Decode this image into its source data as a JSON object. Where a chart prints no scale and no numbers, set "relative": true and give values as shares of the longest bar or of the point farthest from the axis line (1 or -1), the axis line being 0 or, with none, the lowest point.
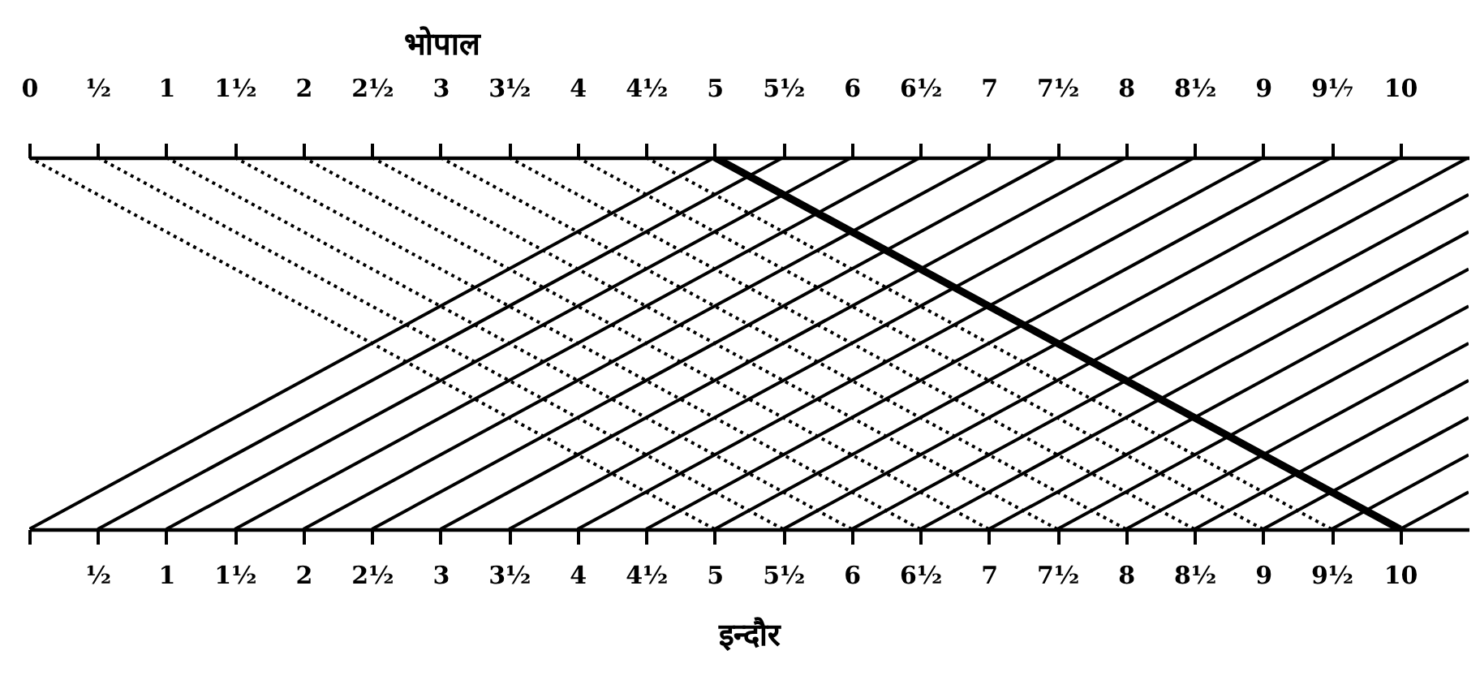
{
  "chart_data": {
    "type": "line",
    "relative": true,
    "x2label": "भोपाल",
    "xlabel": "इन्दौर",
    "grid": false,
    "xlim": [
      0,
      10.5
    ],
    "xticks": [
      {
        "value": 0,
        "label": null
      },
      {
        "value": 0.5,
        "label": "½"
      },
      1,
      {
        "value": 1.5,
        "label": "1½"
      },
      2,
      {
        "value": 2.5,
        "label": "2½"
      },
      3,
      {
        "value": 3.5,
        "label": "3½"
      },
      4,
      {
        "value": 4.5,
        "label": "4½"
      },
      5,
      {
        "value": 5.5,
        "label": "5½"
      },
      6,
      {
        "value": 6.5,
        "label": "6½"
      },
      7,
      {
        "value": 7.5,
        "label": "7½"
      },
      8,
      {
        "value": 8.5,
        "label": "8½"
      },
      9,
      {
        "value": 9.5,
        "label": "9½"
      },
      10
    ],
    "x2lim": [
      0,
      10.5
    ],
    "x2ticks": [
      0,
      {
        "value": 0.5,
        "label": "½"
      },
      1,
      {
        "value": 1.5,
        "label": "1½"
      },
      2,
      {
        "value": 2.5,
        "label": "2½"
      },
      3,
      {
        "value": 3.5,
        "label": "3½"
      },
      4,
      {
        "value": 4.5,
        "label": "4½"
      },
      5,
      {
        "value": 5.5,
        "label": "5½"
      },
      6,
      {
        "value": 6.5,
        "label": "6½"
      },
      7,
      {
        "value": 7.5,
        "label": "7½"
      },
      8,
      {
        "value": 8.5,
        "label": "8½"
      },
      9,
      {
        "value": 9.5,
        "label": "9⅐"
      },
      10
    ],
    "series": [
      {
        "color": "#000000",
        "line_style": "dotted",
        "x": [
          0,
          5
        ],
        "values": [
          1,
          0
        ]
      },
      {
        "color": "#000000",
        "line_style": "dotted",
        "x": [
          0.5,
          5.5
        ],
        "values": [
          1,
          0
        ]
      },
      {
        "color": "#000000",
        "line_style": "dotted",
        "x": [
          1,
          6
        ],
        "values": [
          1,
          0
        ]
      },
      {
        "color": "#000000",
        "line_style": "dotted",
        "x": [
          1.5,
          6.5
        ],
        "values": [
          1,
          0
        ]
      },
      {
        "color": "#000000",
        "line_style": "dotted",
        "x": [
          2,
          7
        ],
        "values": [
          1,
          0
        ]
      },
      {
        "color": "#000000",
        "line_style": "dotted",
        "x": [
          2.5,
          7.5
        ],
        "values": [
          1,
          0
        ]
      },
      {
        "color": "#000000",
        "line_style": "dotted",
        "x": [
          3,
          8
        ],
        "values": [
          1,
          0
        ]
      },
      {
        "color": "#000000",
        "line_style": "dotted",
        "x": [
          3.5,
          8.5
        ],
        "values": [
          1,
          0
        ]
      },
      {
        "color": "#000000",
        "line_style": "dotted",
        "x": [
          4,
          9
        ],
        "values": [
          1,
          0
        ]
      },
      {
        "color": "#000000",
        "line_style": "dotted",
        "x": [
          4.5,
          9.5
        ],
        "values": [
          1,
          0
        ]
      },
      {
        "color": "#000000",
        "line_style": "solid",
        "x": [
          0,
          5
        ],
        "values": [
          0,
          1
        ]
      },
      {
        "color": "#000000",
        "line_style": "solid",
        "x": [
          0.5,
          5.5
        ],
        "values": [
          0,
          1
        ]
      },
      {
        "color": "#000000",
        "line_style": "solid",
        "x": [
          1,
          6
        ],
        "values": [
          0,
          1
        ]
      },
      {
        "color": "#000000",
        "line_style": "solid",
        "x": [
          1.5,
          6.5
        ],
        "values": [
          0,
          1
        ]
      },
      {
        "color": "#000000",
        "line_style": "solid",
        "x": [
          2,
          7
        ],
        "values": [
          0,
          1
        ]
      },
      {
        "color": "#000000",
        "line_style": "solid",
        "x": [
          2.5,
          7.5
        ],
        "values": [
          0,
          1
        ]
      },
      {
        "color": "#000000",
        "line_style": "solid",
        "x": [
          3,
          8
        ],
        "values": [
          0,
          1
        ]
      },
      {
        "color": "#000000",
        "line_style": "solid",
        "x": [
          3.5,
          8.5
        ],
        "values": [
          0,
          1
        ]
      },
      {
        "color": "#000000",
        "line_style": "solid",
        "x": [
          4,
          9
        ],
        "values": [
          0,
          1
        ]
      },
      {
        "color": "#000000",
        "line_style": "solid",
        "x": [
          4.5,
          9.5
        ],
        "values": [
          0,
          1
        ]
      },
      {
        "color": "#000000",
        "line_style": "solid",
        "x": [
          5,
          10
        ],
        "values": [
          0,
          1
        ]
      },
      {
        "color": "#000000",
        "line_style": "solid",
        "x": [
          5.5,
          10.5
        ],
        "values": [
          0,
          1
        ]
      },
      {
        "color": "#000000",
        "line_style": "solid",
        "x": [
          6,
          10.5
        ],
        "values": [
          0,
          0.9
        ]
      },
      {
        "color": "#000000",
        "line_style": "solid",
        "x": [
          6.5,
          10.5
        ],
        "values": [
          0,
          0.8
        ]
      },
      {
        "color": "#000000",
        "line_style": "solid",
        "x": [
          7,
          10.5
        ],
        "values": [
          0,
          0.7
        ]
      },
      {
        "color": "#000000",
        "line_style": "solid",
        "x": [
          7.5,
          10.5
        ],
        "values": [
          0,
          0.6
        ]
      },
      {
        "color": "#000000",
        "line_style": "solid",
        "x": [
          8,
          10.5
        ],
        "values": [
          0,
          0.5
        ]
      },
      {
        "color": "#000000",
        "line_style": "solid",
        "x": [
          8.5,
          10.5
        ],
        "values": [
          0,
          0.4
        ]
      },
      {
        "color": "#000000",
        "line_style": "solid",
        "x": [
          9,
          10.5
        ],
        "values": [
          0,
          0.3
        ]
      },
      {
        "color": "#000000",
        "line_style": "solid",
        "x": [
          9.5,
          10.5
        ],
        "values": [
          0,
          0.2
        ]
      },
      {
        "color": "#000000",
        "line_style": "solid",
        "x": [
          10,
          10.5
        ],
        "values": [
          0,
          0.1
        ]
      },
      {
        "color": "#000000",
        "line_style": "solid",
        "x": [
          5,
          10
        ],
        "values": [
          1,
          0
        ]
      }
    ]
  }
}
